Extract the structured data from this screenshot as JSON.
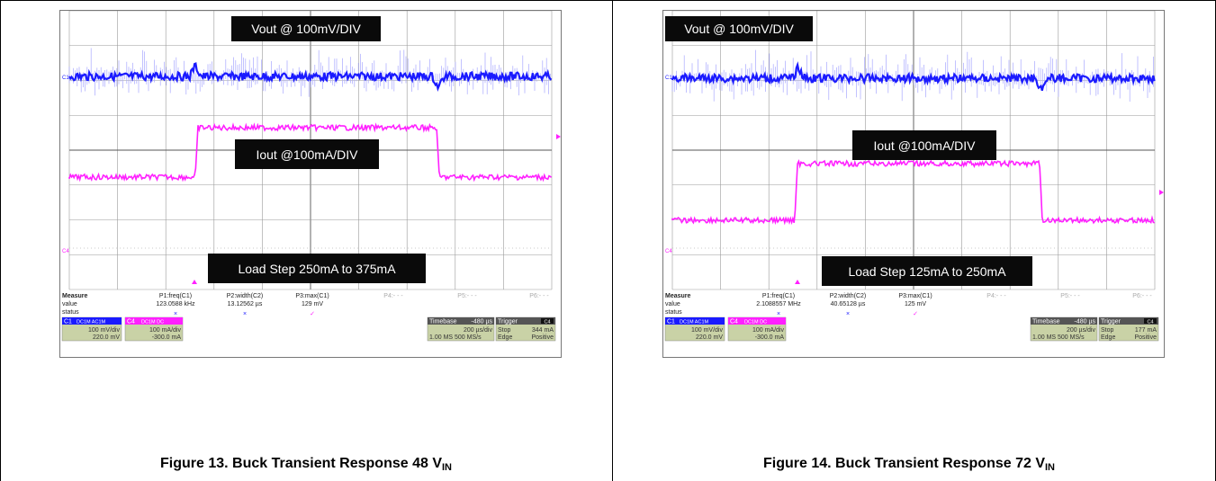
{
  "figures": [
    {
      "id": "fig13",
      "vout_label": "Vout @ 100mV/DIV",
      "iout_label": "Iout @100mA/DIV",
      "load_label": "Load Step 250mA to 375mA",
      "measure": {
        "title": "Measure",
        "row_value": "value",
        "row_status": "status",
        "p1_head": "P1:freq(C1)",
        "p1_val": "123.0588 kHz",
        "p2_head": "P2:width(C2)",
        "p2_val": "13.12562 µs",
        "p3_head": "P3:max(C1)",
        "p3_val": "129 mV",
        "p4": "P4:- - -",
        "p5": "P5:- - -",
        "p6": "P6:- - -"
      },
      "ch1": {
        "tag": "C1",
        "mode": "DC1M AC1M",
        "scale": "100 mV/div",
        "offset": "220.0 mV"
      },
      "ch4": {
        "tag": "C4",
        "mode": "DC1M DC",
        "scale": "100 mA/div",
        "offset": "-300.0 mA"
      },
      "timebase": {
        "label": "Timebase",
        "delay": "-480 µs",
        "perdiv": "200 µs/div",
        "samples": "1.00 MS   500 MS/s"
      },
      "trigger": {
        "label": "Trigger",
        "ch": "C4",
        "mode": "Stop",
        "level": "344 mA",
        "type": "Edge",
        "slope": "Positive"
      },
      "caption_main": "Figure 13. Buck Transient Response 48 V",
      "caption_sub": "IN"
    },
    {
      "id": "fig14",
      "vout_label": "Vout @ 100mV/DIV",
      "iout_label": "Iout @100mA/DIV",
      "load_label": "Load Step 125mA to 250mA",
      "measure": {
        "title": "Measure",
        "row_value": "value",
        "row_status": "status",
        "p1_head": "P1:freq(C1)",
        "p1_val": "2.1088557 MHz",
        "p2_head": "P2:width(C2)",
        "p2_val": "40.65128 µs",
        "p3_head": "P3:max(C1)",
        "p3_val": "125 mV",
        "p4": "P4:- - -",
        "p5": "P5:- - -",
        "p6": "P6:- - -"
      },
      "ch1": {
        "tag": "C1",
        "mode": "DC1M AC1M",
        "scale": "100 mV/div",
        "offset": "220.0 mV"
      },
      "ch4": {
        "tag": "C4",
        "mode": "DC1M DC",
        "scale": "100 mA/div",
        "offset": "-300.0 mA"
      },
      "timebase": {
        "label": "Timebase",
        "delay": "-480 µs",
        "perdiv": "200 µs/div",
        "samples": "1.00 MS   500 MS/s"
      },
      "trigger": {
        "label": "Trigger",
        "ch": "C4",
        "mode": "Stop",
        "level": "177 mA",
        "type": "Edge",
        "slope": "Positive"
      },
      "caption_main": "Figure 14. Buck Transient Response 72 V",
      "caption_sub": "IN"
    }
  ],
  "colors": {
    "ch1": "#1a1aff",
    "ch1_light": "#a8a8ff",
    "ch4": "#ff20ff",
    "label_bg": "#0a0a0a",
    "panel_bg": "#c9d2a6"
  }
}
